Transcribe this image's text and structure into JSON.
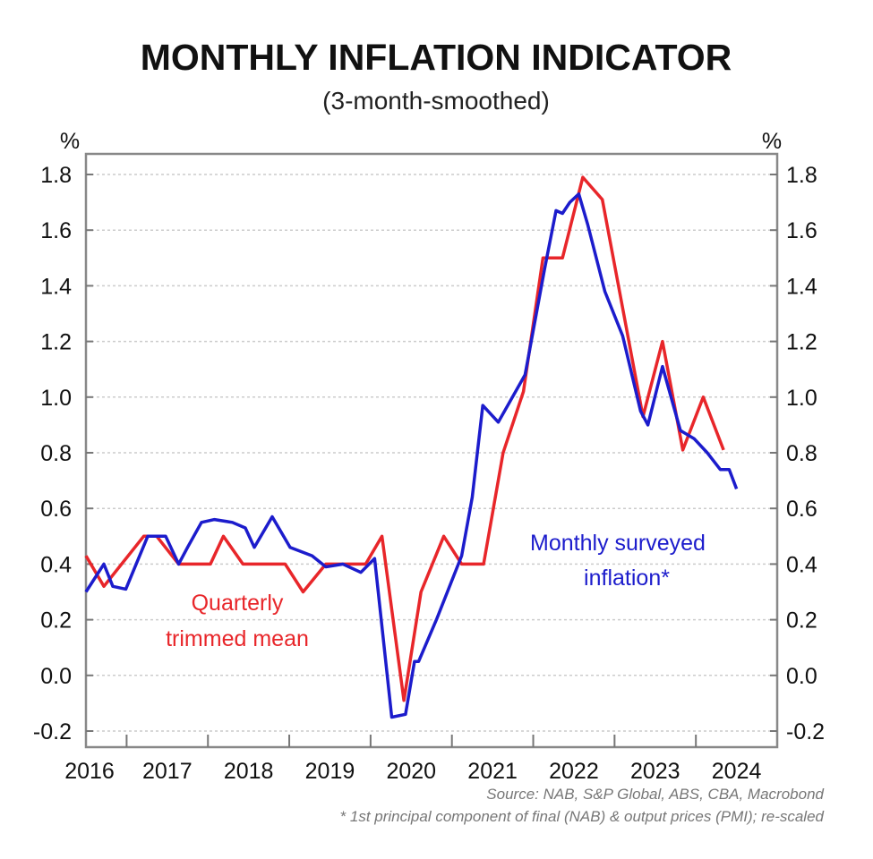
{
  "chart_data": {
    "type": "line",
    "title": "MONTHLY INFLATION INDICATOR",
    "subtitle": "(3-month-smoothed)",
    "ylabel_left": "%",
    "ylabel_right": "%",
    "ylim": [
      -0.2,
      1.8
    ],
    "xlim": [
      2016.5,
      2025.0
    ],
    "yticks": [
      "1.8",
      "1.6",
      "1.4",
      "1.2",
      "1.0",
      "0.8",
      "0.6",
      "0.4",
      "0.2",
      "0.0",
      "-0.2"
    ],
    "ytick_values": [
      1.8,
      1.6,
      1.4,
      1.2,
      1.0,
      0.8,
      0.6,
      0.4,
      0.2,
      0.0,
      -0.2
    ],
    "xticks": [
      "2016",
      "2017",
      "2018",
      "2019",
      "2020",
      "2021",
      "2022",
      "2023",
      "2024"
    ],
    "grid": true,
    "series": [
      {
        "name": "Quarterly trimmed mean",
        "label_lines": [
          "Quarterly",
          "trimmed mean"
        ],
        "color": "#e8262a",
        "x": [
          2016.5,
          2016.72,
          2017.21,
          2017.37,
          2017.64,
          2018.03,
          2018.19,
          2018.43,
          2018.95,
          2019.17,
          2019.45,
          2019.94,
          2020.14,
          2020.41,
          2020.62,
          2020.9,
          2021.12,
          2021.39,
          2021.63,
          2021.88,
          2022.12,
          2022.36,
          2022.61,
          2022.85,
          2023.35,
          2023.59,
          2023.84,
          2024.09,
          2024.34
        ],
        "y": [
          0.43,
          0.32,
          0.5,
          0.5,
          0.4,
          0.4,
          0.5,
          0.4,
          0.4,
          0.3,
          0.4,
          0.4,
          0.5,
          -0.09,
          0.3,
          0.5,
          0.4,
          0.4,
          0.8,
          1.02,
          1.5,
          1.5,
          1.79,
          1.71,
          0.93,
          1.2,
          0.81,
          1.0,
          0.81
        ]
      },
      {
        "name": "Monthly surveyed inflation*",
        "label_lines": [
          "Monthly surveyed",
          "inflation*"
        ],
        "color": "#1c1ccc",
        "x": [
          2016.5,
          2016.72,
          2016.83,
          2016.99,
          2017.26,
          2017.48,
          2017.64,
          2017.75,
          2017.92,
          2018.08,
          2018.3,
          2018.46,
          2018.57,
          2018.79,
          2019.01,
          2019.28,
          2019.45,
          2019.66,
          2019.88,
          2020.05,
          2020.26,
          2020.43,
          2020.54,
          2020.59,
          2020.81,
          2021.12,
          2021.25,
          2021.38,
          2021.57,
          2021.9,
          2022.14,
          2022.28,
          2022.36,
          2022.45,
          2022.56,
          2022.67,
          2022.88,
          2023.1,
          2023.32,
          2023.41,
          2023.59,
          2023.81,
          2023.98,
          2024.14,
          2024.3,
          2024.41,
          2024.5
        ],
        "y": [
          0.3,
          0.4,
          0.32,
          0.31,
          0.5,
          0.5,
          0.4,
          0.46,
          0.55,
          0.56,
          0.55,
          0.53,
          0.46,
          0.57,
          0.46,
          0.43,
          0.39,
          0.4,
          0.37,
          0.42,
          -0.15,
          -0.14,
          0.05,
          0.05,
          0.2,
          0.43,
          0.64,
          0.97,
          0.91,
          1.08,
          1.46,
          1.67,
          1.66,
          1.7,
          1.73,
          1.62,
          1.38,
          1.22,
          0.95,
          0.9,
          1.11,
          0.88,
          0.85,
          0.8,
          0.74,
          0.74,
          0.67
        ]
      }
    ],
    "source": "Source: NAB, S&P Global, ABS, CBA, Macrobond",
    "footnote": "* 1st principal component of final (NAB) & output prices (PMI); re-scaled"
  }
}
